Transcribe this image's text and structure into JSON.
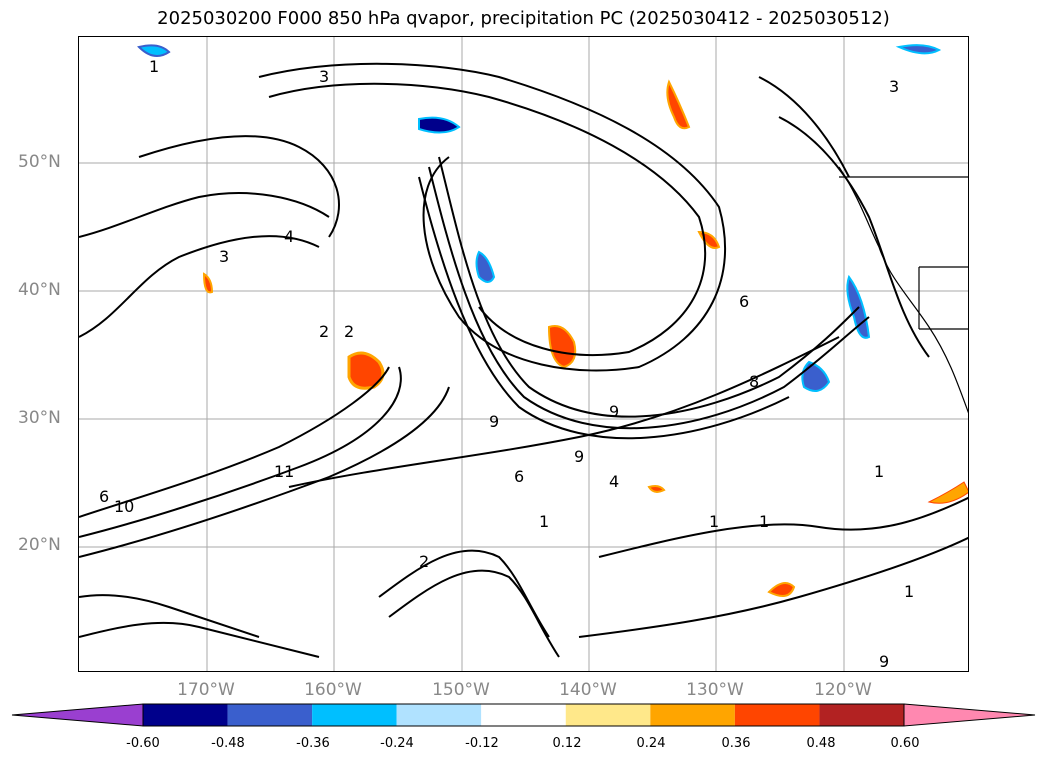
{
  "title": "2025030200 F000 850 hPa qvapor, precipitation PC (2025030412 - 2025030512)",
  "map": {
    "lat_labels": [
      "50°N",
      "40°N",
      "30°N",
      "20°N"
    ],
    "lon_labels": [
      "170°W",
      "160°W",
      "150°W",
      "140°W",
      "130°W",
      "120°W"
    ],
    "contour_labels": [
      "1",
      "2",
      "3",
      "4",
      "6",
      "9",
      "10",
      "11",
      "1",
      "1",
      "9",
      "2",
      "6",
      "8",
      "9",
      "4",
      "3",
      "1",
      "1",
      "2",
      "1",
      "3",
      "6",
      "9"
    ]
  },
  "colorbar": {
    "ticks": [
      "-0.60",
      "-0.48",
      "-0.36",
      "-0.24",
      "-0.12",
      "0.12",
      "0.24",
      "0.36",
      "0.48",
      "0.60"
    ],
    "colors": [
      "#9a3fd0",
      "#00008b",
      "#3a5fcd",
      "#00bfff",
      "#b0e2ff",
      "#ffffff",
      "#ffe88a",
      "#ffa500",
      "#ff4500",
      "#b22222",
      "#ff88b0"
    ]
  }
}
